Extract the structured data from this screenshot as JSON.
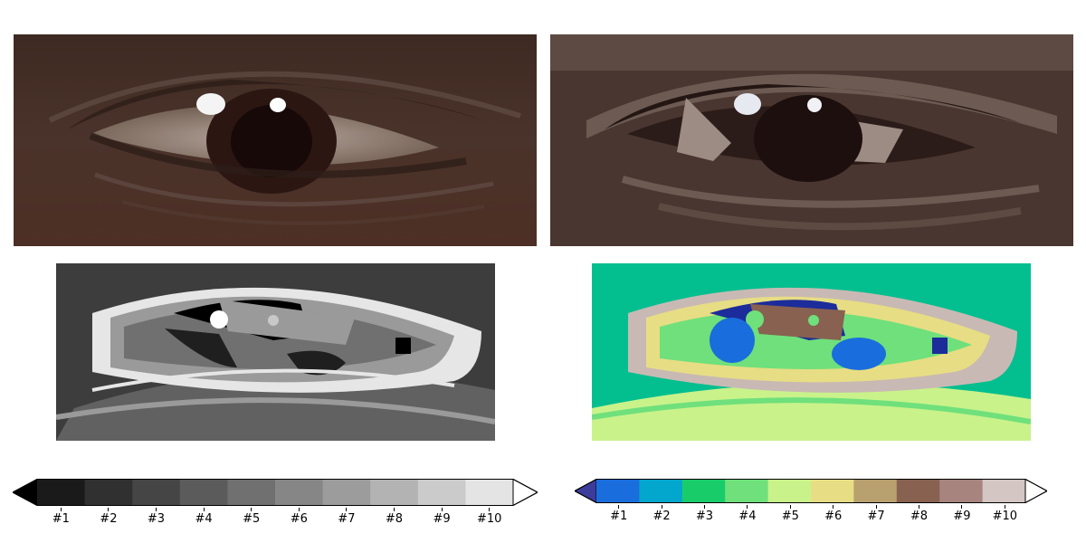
{
  "images": {
    "original": {
      "name": "eye-photo-original"
    },
    "quantized": {
      "name": "eye-photo-quantized"
    },
    "gray_map": {
      "name": "eye-label-map-gray"
    },
    "terrain_map": {
      "name": "eye-label-map-terrain"
    }
  },
  "colorbars": {
    "gray": {
      "ticks": [
        "#1",
        "#2",
        "#3",
        "#4",
        "#5",
        "#6",
        "#7",
        "#8",
        "#9",
        "#10"
      ],
      "colors": [
        "#1a1a1a",
        "#303030",
        "#454545",
        "#5b5b5b",
        "#707070",
        "#868686",
        "#9c9c9c",
        "#b3b3b3",
        "#cbcbcb",
        "#e4e4e4"
      ],
      "under_color": "#000000",
      "over_color": "#ffffff"
    },
    "terrain": {
      "ticks": [
        "#1",
        "#2",
        "#3",
        "#4",
        "#5",
        "#6",
        "#7",
        "#8",
        "#9",
        "#10"
      ],
      "colors": [
        "#1a6ddd",
        "#03a6cc",
        "#19cc6a",
        "#6fe07b",
        "#c9f28b",
        "#e7dd84",
        "#b8a06f",
        "#886150",
        "#a7847d",
        "#d3c6c3"
      ],
      "under_color": "#3c3c9b",
      "over_color": "#ffffff"
    }
  }
}
